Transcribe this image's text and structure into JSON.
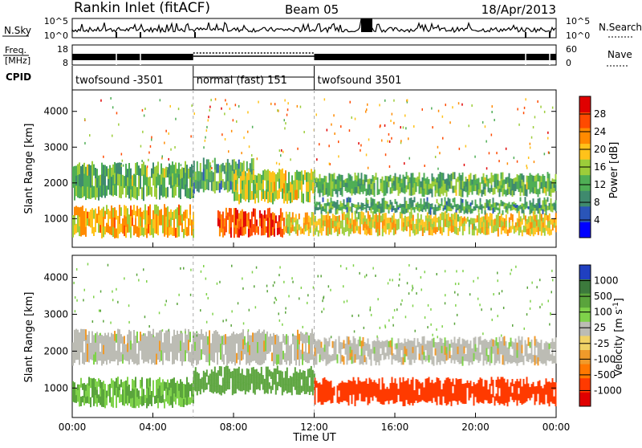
{
  "header": {
    "station": "Rankin Inlet (fitACF)",
    "beam": "Beam 05",
    "date": "18/Apr/2013"
  },
  "noise_panel": {
    "left_label": "N.Sky",
    "right_label": "N.Search",
    "y_ticks": [
      "10^5",
      "10^0"
    ],
    "right_y_ticks": [
      "10^5",
      "10^0"
    ]
  },
  "freq_panel": {
    "left_label_line1": "Freq.",
    "left_label_line2": "[MHz]",
    "right_label": "Nave",
    "y_ticks": [
      "18",
      "8"
    ],
    "right_y_ticks": [
      "60",
      "0"
    ]
  },
  "cpid": {
    "label": "CPID",
    "segments": [
      {
        "start": 0,
        "end": 6,
        "name": "twofsound -3501"
      },
      {
        "start": 6,
        "end": 12,
        "name": "normal (fast) 151"
      },
      {
        "start": 12,
        "end": 24,
        "name": "twofsound 3501"
      }
    ]
  },
  "colors": {
    "power_scale": [
      "#0000ff",
      "#2a55b8",
      "#3f8a6e",
      "#4fae55",
      "#9ccd3a",
      "#ffc21a",
      "#ff8a00",
      "#ff4a00",
      "#e00000"
    ],
    "velocity_scale": [
      "#2040c0",
      "#3c7a3c",
      "#5aa43c",
      "#7fd24a",
      "#bcbcb4",
      "#f0d266",
      "#f09a2a",
      "#ff7800",
      "#ff3a00",
      "#e00000"
    ]
  },
  "chart_data": [
    {
      "type": "heatmap",
      "title": "",
      "quantity": "Power",
      "xlabel": "",
      "ylabel": "Slant Range [km]",
      "xlim": [
        0,
        24
      ],
      "ylim": [
        200,
        4600
      ],
      "y_ticks": [
        "1000",
        "2000",
        "3000",
        "4000"
      ],
      "colorbar": {
        "label": "Power [dB]",
        "ticks": [
          "4",
          "8",
          "12",
          "16",
          "20",
          "24",
          "28"
        ],
        "range": [
          0,
          30
        ]
      },
      "bands": [
        {
          "start": 0.0,
          "end": 6.0,
          "low": 550,
          "high": 1300,
          "value": 20
        },
        {
          "start": 0.0,
          "end": 6.0,
          "low": 1600,
          "high": 2500,
          "value": 12
        },
        {
          "start": 6.0,
          "end": 9.0,
          "low": 1800,
          "high": 2600,
          "value": 10
        },
        {
          "start": 7.2,
          "end": 10.5,
          "low": 550,
          "high": 1200,
          "value": 26
        },
        {
          "start": 8.0,
          "end": 12.0,
          "low": 1500,
          "high": 2300,
          "value": 16
        },
        {
          "start": 10.5,
          "end": 24.0,
          "low": 600,
          "high": 1100,
          "value": 18
        },
        {
          "start": 12.0,
          "end": 24.0,
          "low": 1700,
          "high": 2200,
          "value": 12
        },
        {
          "start": 12.0,
          "end": 24.0,
          "low": 1200,
          "high": 1500,
          "value": 10
        }
      ]
    },
    {
      "type": "heatmap",
      "title": "",
      "quantity": "Velocity",
      "xlabel": "Time UT",
      "ylabel": "Slant Range [km]",
      "xlim": [
        0,
        24
      ],
      "ylim": [
        200,
        4600
      ],
      "x_ticks": [
        "00:00",
        "04:00",
        "08:00",
        "12:00",
        "16:00",
        "20:00",
        "00:00"
      ],
      "y_ticks": [
        "1000",
        "2000",
        "3000",
        "4000"
      ],
      "colorbar": {
        "label": "Velocity [m s^-1]",
        "ticks": [
          "1000",
          "500",
          "100",
          "25",
          "-25",
          "-100",
          "-500",
          "-1000"
        ]
      },
      "bands": [
        {
          "start": 0.0,
          "end": 6.0,
          "low": 550,
          "high": 1200,
          "value": 100
        },
        {
          "start": 0.0,
          "end": 12.0,
          "low": 1700,
          "high": 2500,
          "value": 0
        },
        {
          "start": 6.0,
          "end": 12.0,
          "low": 900,
          "high": 1500,
          "value": 150
        },
        {
          "start": 12.0,
          "end": 24.0,
          "low": 600,
          "high": 1200,
          "value": -150
        },
        {
          "start": 12.0,
          "end": 24.0,
          "low": 1700,
          "high": 2300,
          "value": 0
        }
      ]
    }
  ],
  "axis_titles": {
    "slant_range": "Slant Range [km]",
    "time": "Time UT",
    "power": "Power [dB]",
    "velocity": "Velocity"
  }
}
